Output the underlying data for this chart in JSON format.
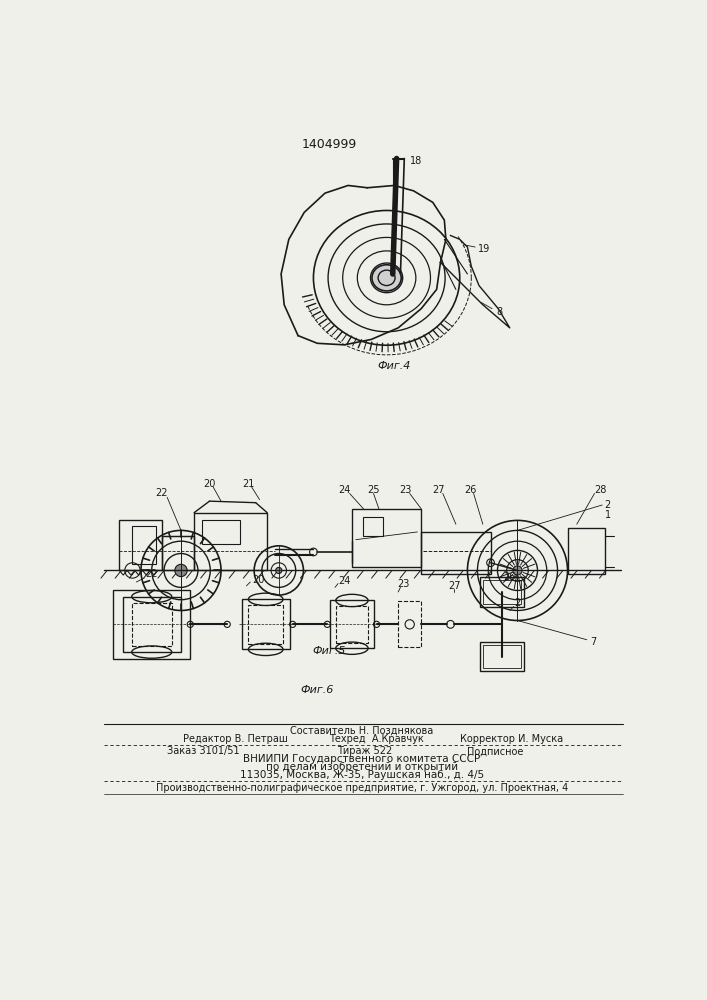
{
  "patent_number": "1404999",
  "bg_color": "#f0f0eb",
  "line_color": "#1a1a1a",
  "fig4_caption": "Фиг.4",
  "fig5_caption": "Фиг.5",
  "fig6_caption": "Фиг.6",
  "footer_lines": [
    "Составитель Н. Позднякова",
    "Редактор В. Петраш",
    "Техред  А.Кравчук",
    "Корректор И. Муска",
    "Заказ 3101/51",
    "Тираж 522",
    "Подписное",
    "ВНИИПИ Государственного комитета СССР",
    "по делам изобретений и открытий",
    "113035, Москва, Ж-35, Раушская наб., д. 4/5",
    "Производственно-полиграфическое предприятие, г. Ужгород, ул. Проектная, 4"
  ]
}
